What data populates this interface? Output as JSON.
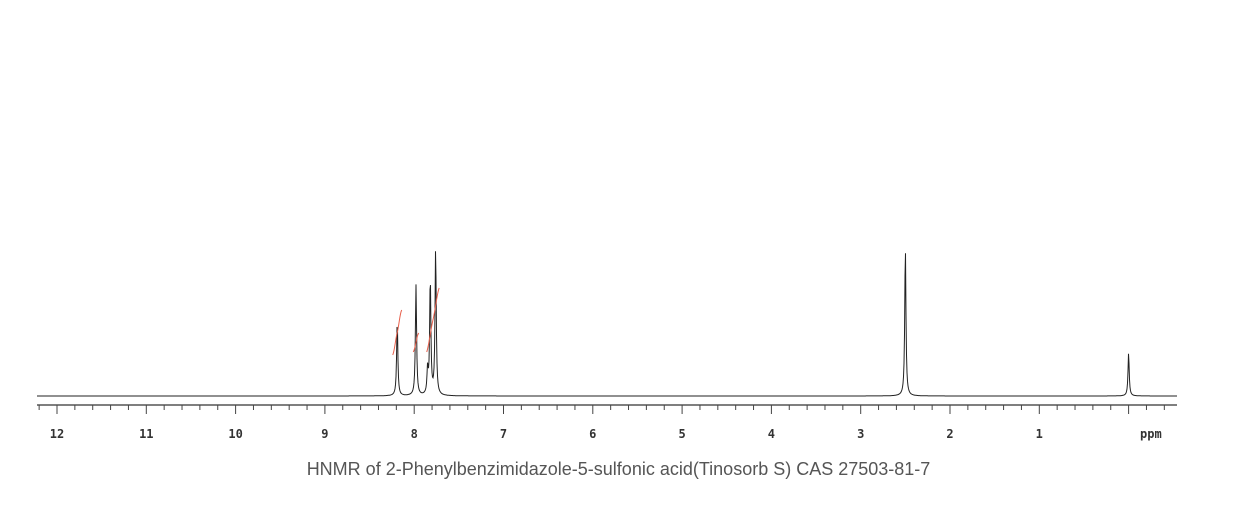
{
  "chart_data": {
    "type": "line",
    "title": "",
    "xlabel": "ppm",
    "ylabel": "",
    "xlim": [
      12.2,
      -0.55
    ],
    "x_reversed": true,
    "x_ticks": [
      12,
      11,
      10,
      9,
      8,
      7,
      6,
      5,
      4,
      3,
      2,
      1
    ],
    "x_tick_labels": [
      "12",
      "11",
      "10",
      "9",
      "8",
      "7",
      "6",
      "5",
      "4",
      "3",
      "2",
      "1"
    ],
    "minor_tick_step": 0.2,
    "grid": false,
    "peaks": [
      {
        "ppm": 8.19,
        "intensity": 76
      },
      {
        "ppm": 7.98,
        "intensity": 111
      },
      {
        "ppm": 7.85,
        "intensity": 25
      },
      {
        "ppm": 7.82,
        "intensity": 117
      },
      {
        "ppm": 7.76,
        "intensity": 147
      },
      {
        "ppm": 2.5,
        "intensity": 149
      },
      {
        "ppm": 0.0,
        "intensity": 43
      }
    ],
    "integrals": [
      {
        "from": 8.24,
        "to": 8.14
      },
      {
        "from": 8.01,
        "to": 7.95
      },
      {
        "from": 7.86,
        "to": 7.72
      }
    ],
    "colors": {
      "spectrum": "#222222",
      "integral": "#e8604c",
      "axis": "#555555"
    }
  },
  "caption": "HNMR of 2-Phenylbenzimidazole-5-sulfonic acid(Tinosorb S) CAS 27503-81-7"
}
